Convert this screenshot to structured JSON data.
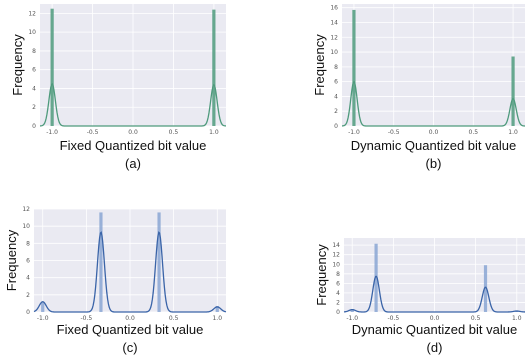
{
  "chart_data": [
    {
      "type": "histogram",
      "caption": "(a)",
      "xlabel": "Fixed Quantized bit value",
      "ylabel": "Frequency",
      "xlim": [
        -1.15,
        1.15
      ],
      "ylim": [
        0,
        13
      ],
      "x_ticks": [
        "-1.0",
        "-0.5",
        "0.0",
        "0.5",
        "1.0"
      ],
      "x_tick_values": [
        -1.0,
        -0.5,
        0.0,
        0.5,
        1.0
      ],
      "y_ticks": [
        0,
        2,
        4,
        6,
        8,
        10,
        12
      ],
      "bar_color": "#4e9a7c",
      "line_color": "#4e9a7c",
      "bars": [
        {
          "x": -1.0,
          "height": 12.5
        },
        {
          "x": 1.0,
          "height": 12.4
        }
      ],
      "kde_peaks": [
        {
          "x": -1.0,
          "height": 4.5
        },
        {
          "x": 1.0,
          "height": 4.4
        }
      ],
      "grid": true,
      "background": "#eaeaf2"
    },
    {
      "type": "histogram",
      "caption": "(b)",
      "xlabel": "Dynamic Quantized bit value",
      "ylabel": "Frequency",
      "xlim": [
        -1.15,
        1.15
      ],
      "ylim": [
        0,
        16.5
      ],
      "x_ticks": [
        "-1.0",
        "-0.5",
        "0.0",
        "0.5",
        "1.0"
      ],
      "x_tick_values": [
        -1.0,
        -0.5,
        0.0,
        0.5,
        1.0
      ],
      "y_ticks": [
        0,
        2,
        4,
        6,
        8,
        10,
        12,
        14,
        16
      ],
      "bar_color": "#4e9a7c",
      "line_color": "#4e9a7c",
      "bars": [
        {
          "x": -1.0,
          "height": 15.7
        },
        {
          "x": 1.0,
          "height": 9.4
        }
      ],
      "kde_peaks": [
        {
          "x": -1.0,
          "height": 6.0
        },
        {
          "x": 1.0,
          "height": 3.7
        }
      ],
      "grid": true,
      "background": "#eaeaf2"
    },
    {
      "type": "histogram",
      "caption": "(c)",
      "xlabel": "Fixed Quantized bit value",
      "ylabel": "Frequency",
      "xlim": [
        -1.1,
        1.1
      ],
      "ylim": [
        0,
        12
      ],
      "x_ticks": [
        "-1.0",
        "-0.5",
        "0.0",
        "0.5",
        "1.0"
      ],
      "x_tick_values": [
        -1.0,
        -0.5,
        0.0,
        0.5,
        1.0
      ],
      "y_ticks": [
        0,
        2,
        4,
        6,
        8,
        10,
        12
      ],
      "bar_color": "#8aa6d4",
      "line_color": "#3a64a8",
      "bars": [
        {
          "x": -1.0,
          "height": 1.1
        },
        {
          "x": -0.333,
          "height": 11.6
        },
        {
          "x": 0.333,
          "height": 11.6
        },
        {
          "x": 1.0,
          "height": 0.7
        }
      ],
      "kde_peaks": [
        {
          "x": -1.0,
          "height": 1.2
        },
        {
          "x": -0.333,
          "height": 9.3
        },
        {
          "x": 0.333,
          "height": 9.3
        },
        {
          "x": 1.0,
          "height": 0.6
        }
      ],
      "grid": true,
      "background": "#eaeaf2"
    },
    {
      "type": "histogram",
      "caption": "(d)",
      "xlabel": "Dynamic Quantized bit value",
      "ylabel": "Frequency",
      "xlim": [
        -1.1,
        1.1
      ],
      "ylim": [
        0,
        15.5
      ],
      "x_ticks": [
        "-1.0",
        "-0.5",
        "0.0",
        "0.5",
        "1.0"
      ],
      "x_tick_values": [
        -1.0,
        -0.5,
        0.0,
        0.5,
        1.0
      ],
      "y_ticks": [
        0,
        2,
        4,
        6,
        8,
        10,
        12,
        14
      ],
      "bar_color": "#8aa6d4",
      "line_color": "#3a64a8",
      "bars": [
        {
          "x": -1.0,
          "height": 0.6
        },
        {
          "x": -0.71,
          "height": 14.3
        },
        {
          "x": 0.62,
          "height": 9.8
        },
        {
          "x": 1.0,
          "height": 0.3
        }
      ],
      "kde_peaks": [
        {
          "x": -1.0,
          "height": 0.5
        },
        {
          "x": -0.71,
          "height": 7.5
        },
        {
          "x": 0.62,
          "height": 5.2
        },
        {
          "x": 1.0,
          "height": 0.2
        }
      ],
      "grid": true,
      "background": "#eaeaf2"
    }
  ]
}
